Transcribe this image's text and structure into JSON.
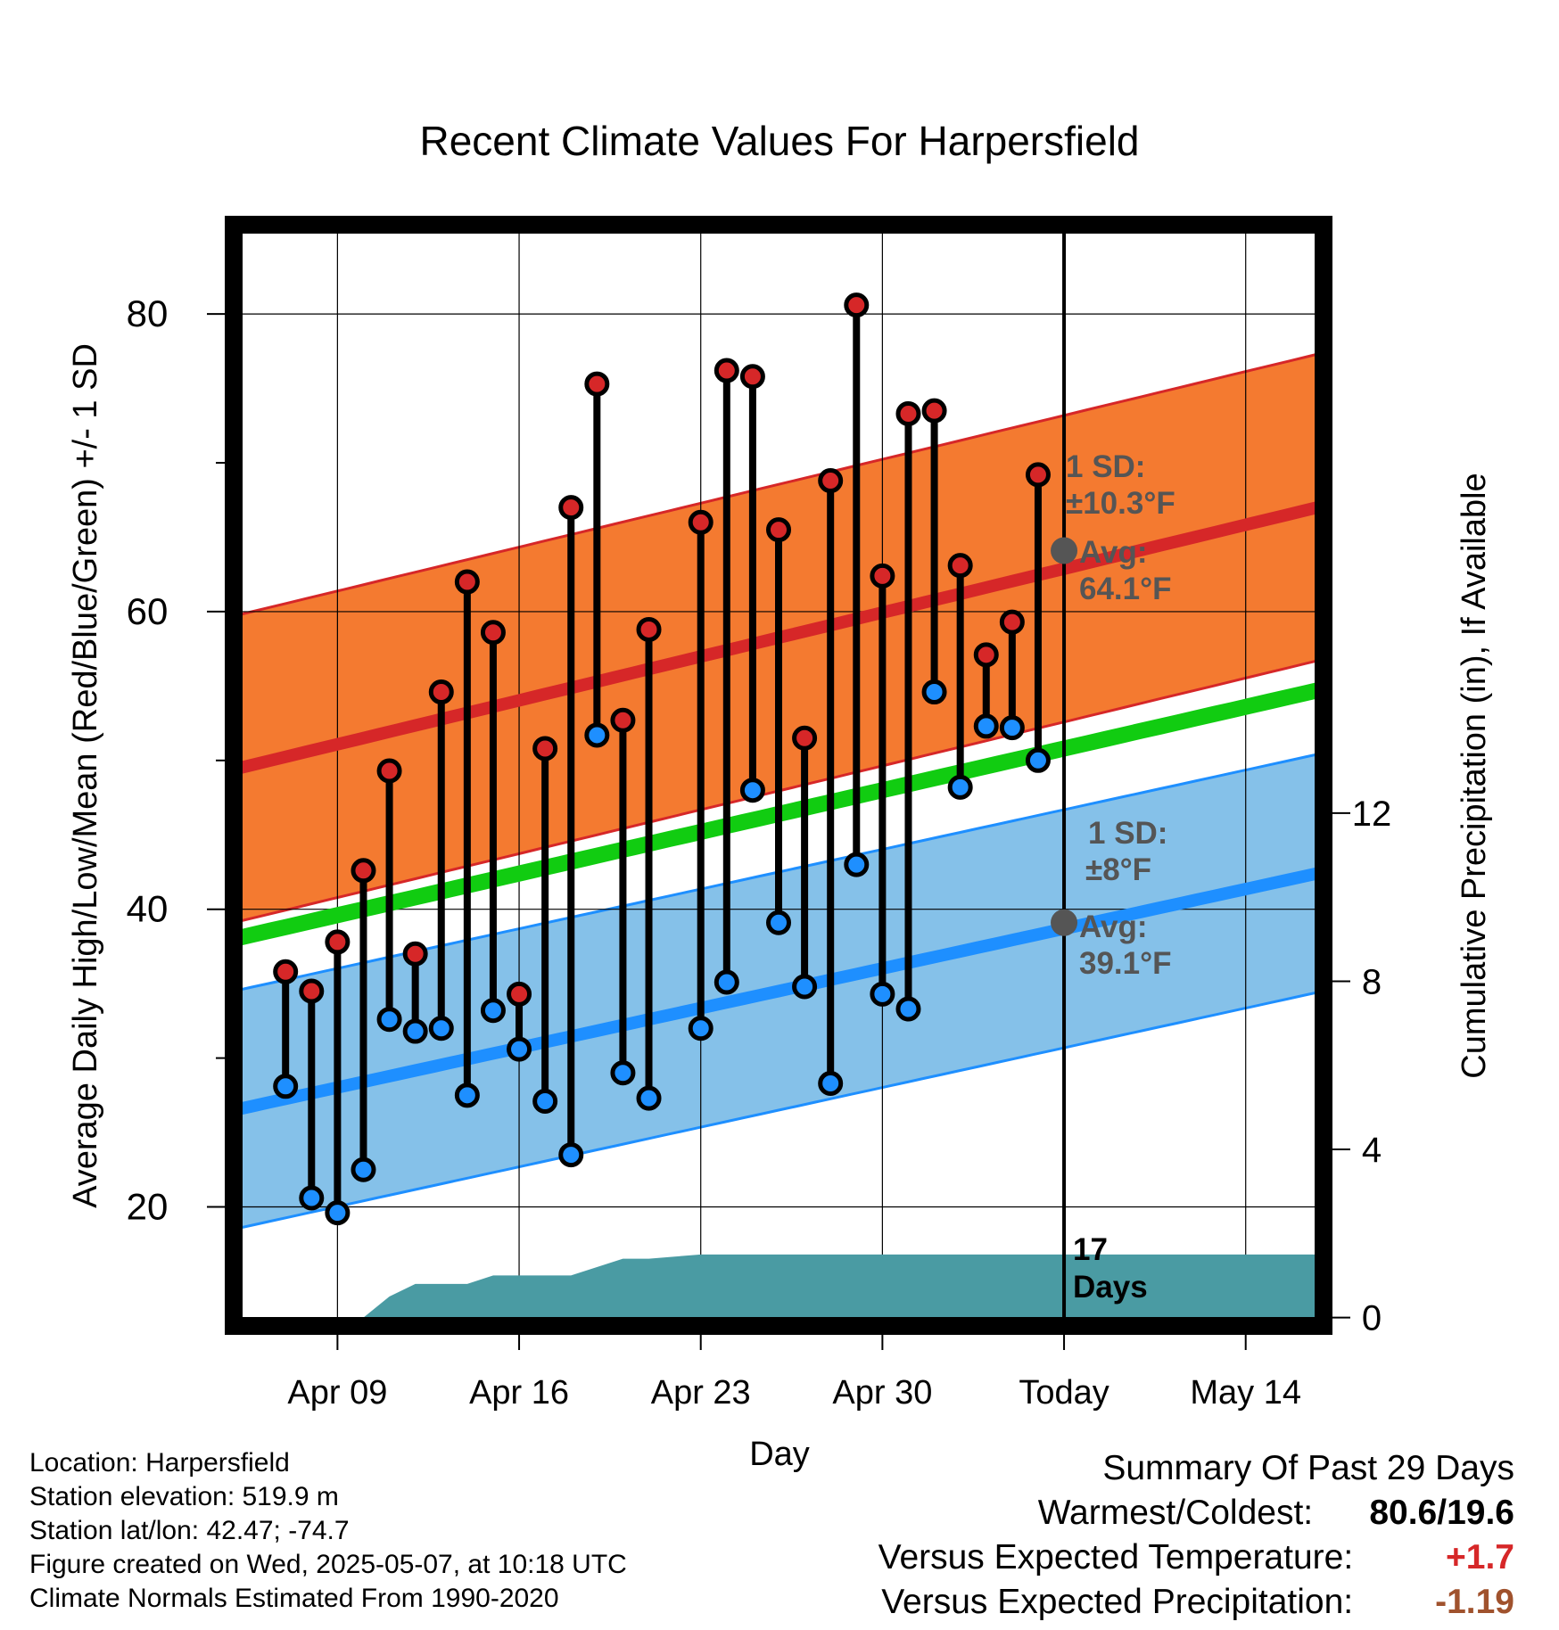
{
  "chart_data": {
    "type": "line",
    "title": "Recent Climate Values For Harpersfield",
    "xlabel": "Day",
    "ylabel": "Average Daily High/Low/Mean (Red/Blue/Green) +/- 1 SD",
    "y2label": "Cumulative Precipitation (in), If Available",
    "x_ticks": [
      "Apr 09",
      "Apr 16",
      "Apr 23",
      "Apr 30",
      "Today",
      "May 14"
    ],
    "y_ticks": [
      20,
      40,
      60,
      80
    ],
    "y2_ticks": [
      0,
      4,
      8,
      12
    ],
    "xlim": [
      "2025-04-05",
      "2025-05-17"
    ],
    "ylim": [
      12,
      86
    ],
    "y2lim": [
      -0.2,
      26
    ],
    "today": "2025-05-07",
    "grid": true,
    "days": [
      "2025-04-07",
      "2025-04-08",
      "2025-04-09",
      "2025-04-10",
      "2025-04-11",
      "2025-04-12",
      "2025-04-13",
      "2025-04-14",
      "2025-04-15",
      "2025-04-16",
      "2025-04-17",
      "2025-04-18",
      "2025-04-19",
      "2025-04-20",
      "2025-04-21",
      "2025-04-23",
      "2025-04-24",
      "2025-04-25",
      "2025-04-26",
      "2025-04-27",
      "2025-04-28",
      "2025-04-29",
      "2025-04-30",
      "2025-05-01",
      "2025-05-02",
      "2025-05-03",
      "2025-05-04",
      "2025-05-05",
      "2025-05-06"
    ],
    "highs": [
      35.8,
      34.5,
      37.8,
      42.6,
      49.3,
      37.0,
      54.6,
      62.0,
      58.6,
      34.3,
      50.8,
      67.0,
      75.3,
      52.7,
      58.8,
      66.0,
      76.2,
      75.8,
      65.5,
      51.5,
      68.8,
      80.6,
      62.4,
      73.3,
      73.5,
      63.1,
      57.1,
      59.3,
      69.2
    ],
    "lows": [
      28.1,
      20.6,
      19.6,
      22.5,
      32.6,
      31.8,
      32.0,
      27.5,
      33.2,
      30.6,
      27.1,
      23.5,
      51.7,
      29.0,
      27.3,
      32.0,
      35.1,
      48.0,
      39.1,
      34.8,
      28.3,
      43.0,
      34.3,
      33.3,
      54.6,
      48.2,
      52.3,
      52.2,
      50.0
    ],
    "series": [
      {
        "name": "Avg High",
        "start": 49.4,
        "end": 67.1,
        "sd": 10.3
      },
      {
        "name": "Avg Low",
        "start": 26.5,
        "end": 42.5,
        "sd": 8.0
      },
      {
        "name": "Avg Mean",
        "start": 38.0,
        "end": 54.8
      }
    ],
    "precip_days": [
      "2025-04-05",
      "2025-04-10",
      "2025-04-11",
      "2025-04-12",
      "2025-04-13",
      "2025-04-14",
      "2025-04-15",
      "2025-04-16",
      "2025-04-17",
      "2025-04-18",
      "2025-04-19",
      "2025-04-20",
      "2025-04-21",
      "2025-04-22",
      "2025-04-23",
      "2025-05-17"
    ],
    "precip_values": [
      0,
      0,
      0.5,
      0.8,
      0.8,
      0.8,
      1.0,
      1.0,
      1.0,
      1.0,
      1.2,
      1.4,
      1.4,
      1.45,
      1.5,
      1.5
    ],
    "annotations": {
      "high_sd_label": "1 SD:",
      "high_sd_value": "±10.3°F",
      "high_avg_label": "Avg:",
      "high_avg_value": "64.1°F",
      "high_avg": 64.1,
      "low_sd_label": "1 SD:",
      "low_sd_value": "±8°F",
      "low_avg_label": "Avg:",
      "low_avg_value": "39.1°F",
      "low_avg": 39.1,
      "days_count": "17",
      "days_word": "Days"
    },
    "colors": {
      "high_band": "#f47a30",
      "high_line": "#d62728",
      "low_band": "#85c1e9",
      "low_line": "#1e8fff",
      "mean_line": "#11cc11",
      "precip": "#4a9ba3",
      "high_dot": "#d62728",
      "low_dot": "#1e8fff",
      "avg_dot": "#555555",
      "annotation": "#555555"
    }
  },
  "footer": {
    "location": "Location: Harpersfield",
    "elevation": "Station elevation: 519.9 m",
    "latlon": "Station lat/lon: 42.47; -74.7",
    "created": "Figure created on Wed, 2025-05-07, at 10:18 UTC",
    "normals": "Climate Normals Estimated From 1990-2020"
  },
  "summary": {
    "title": "Summary Of Past 29 Days",
    "warm_cold_label": "Warmest/Coldest:",
    "warm_cold_value": "80.6/19.6",
    "temp_label": "Versus Expected Temperature:",
    "temp_value": "+1.7",
    "temp_color": "#d62728",
    "precip_label": "Versus Expected Precipitation:",
    "precip_value": "-1.19",
    "precip_color": "#a0522d"
  }
}
